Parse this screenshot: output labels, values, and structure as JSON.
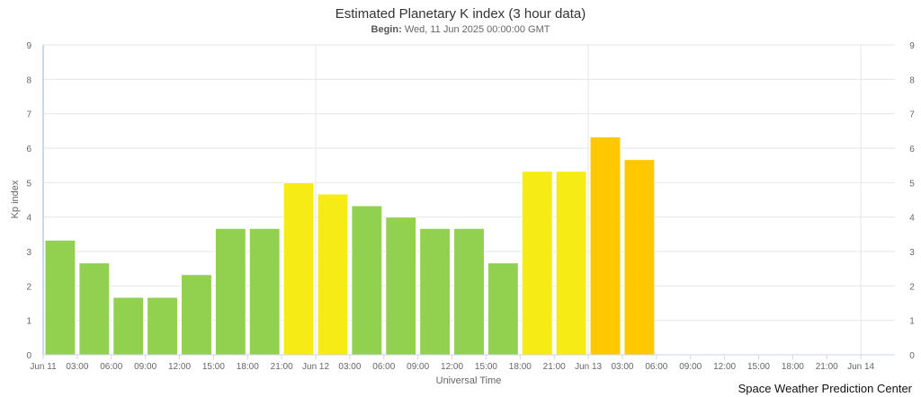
{
  "chart_data": {
    "type": "bar",
    "title": "Estimated Planetary K index (3 hour data)",
    "subtitle_label": "Begin:",
    "subtitle_value": "Wed, 11 Jun 2025 00:00:00 GMT",
    "xlabel": "Universal Time",
    "ylabel": "Kp index",
    "ylim": [
      0,
      9
    ],
    "yticks": [
      0,
      1,
      2,
      3,
      4,
      5,
      6,
      7,
      8,
      9
    ],
    "xlim": [
      "2025-06-11T00:00",
      "2025-06-14T03:00"
    ],
    "xtick_labels": [
      "Jun 11",
      "03:00",
      "06:00",
      "09:00",
      "12:00",
      "15:00",
      "18:00",
      "21:00",
      "Jun 12",
      "03:00",
      "06:00",
      "09:00",
      "12:00",
      "15:00",
      "18:00",
      "21:00",
      "Jun 13",
      "03:00",
      "06:00",
      "09:00",
      "12:00",
      "15:00",
      "18:00",
      "21:00",
      "Jun 14"
    ],
    "grid": true,
    "bars": [
      {
        "start": "2025-06-11T00:00",
        "value": 3.33,
        "color": "#92d050"
      },
      {
        "start": "2025-06-11T03:00",
        "value": 2.67,
        "color": "#92d050"
      },
      {
        "start": "2025-06-11T06:00",
        "value": 1.67,
        "color": "#92d050"
      },
      {
        "start": "2025-06-11T09:00",
        "value": 1.67,
        "color": "#92d050"
      },
      {
        "start": "2025-06-11T12:00",
        "value": 2.33,
        "color": "#92d050"
      },
      {
        "start": "2025-06-11T15:00",
        "value": 3.67,
        "color": "#92d050"
      },
      {
        "start": "2025-06-11T18:00",
        "value": 3.67,
        "color": "#92d050"
      },
      {
        "start": "2025-06-11T21:00",
        "value": 5.0,
        "color": "#f6eb14"
      },
      {
        "start": "2025-06-12T00:00",
        "value": 4.67,
        "color": "#f6eb14"
      },
      {
        "start": "2025-06-12T03:00",
        "value": 4.33,
        "color": "#92d050"
      },
      {
        "start": "2025-06-12T06:00",
        "value": 4.0,
        "color": "#92d050"
      },
      {
        "start": "2025-06-12T09:00",
        "value": 3.67,
        "color": "#92d050"
      },
      {
        "start": "2025-06-12T12:00",
        "value": 3.67,
        "color": "#92d050"
      },
      {
        "start": "2025-06-12T15:00",
        "value": 2.67,
        "color": "#92d050"
      },
      {
        "start": "2025-06-12T18:00",
        "value": 5.33,
        "color": "#f6eb14"
      },
      {
        "start": "2025-06-12T21:00",
        "value": 5.33,
        "color": "#f6eb14"
      },
      {
        "start": "2025-06-13T00:00",
        "value": 6.33,
        "color": "#ffc800"
      },
      {
        "start": "2025-06-13T03:00",
        "value": 5.67,
        "color": "#ffc800"
      }
    ]
  },
  "credit": "Space Weather Prediction Center"
}
